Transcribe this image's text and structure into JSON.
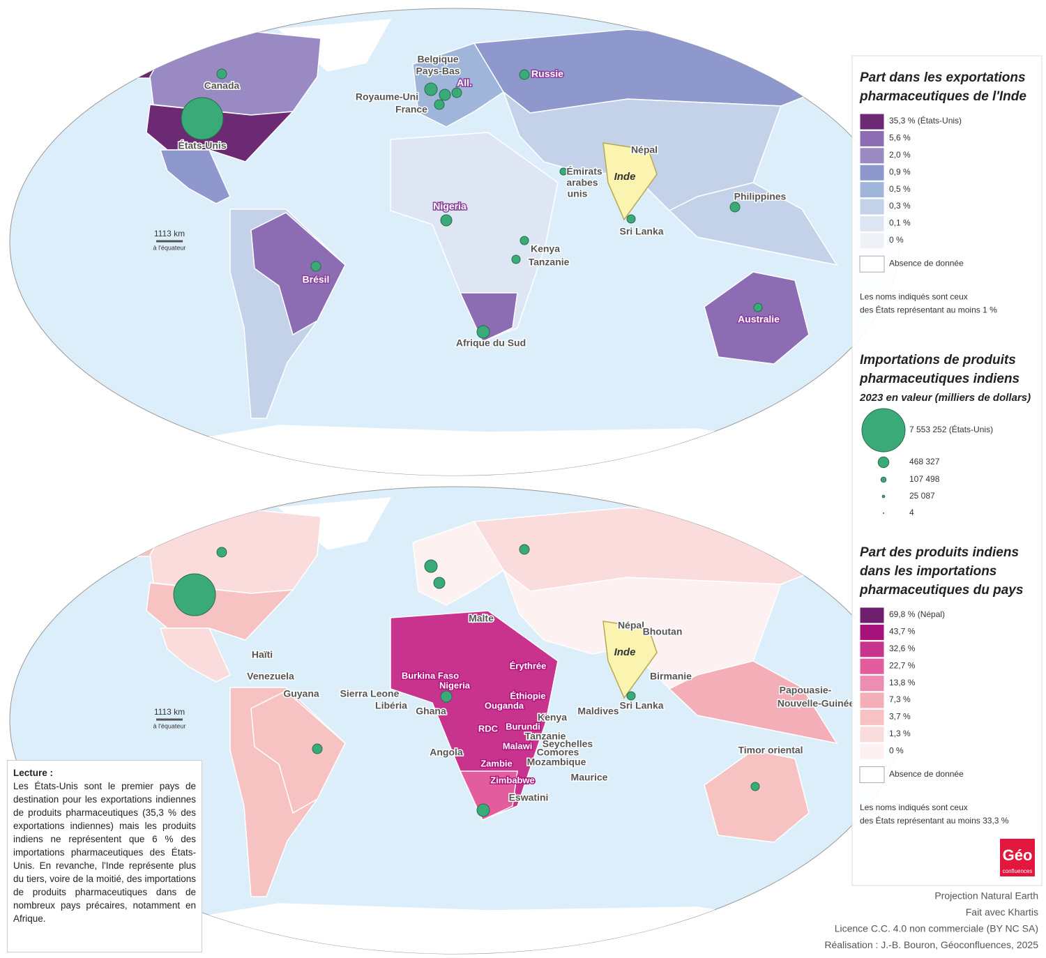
{
  "map_top": {
    "labels": [
      "Canada",
      "États-Unis",
      "Brésil",
      "Belgique",
      "Pays-Bas",
      "Royaume-Uni",
      "France",
      "All.",
      "Russie",
      "Nigeria",
      "Népal",
      "Inde",
      "Émirats",
      "arabes",
      "unis",
      "Sri Lanka",
      "Philippines",
      "Kenya",
      "Tanzanie",
      "Afrique du Sud",
      "Australie"
    ]
  },
  "map_bottom": {
    "labels": [
      "Haïti",
      "Venezuela",
      "Guyana",
      "Burkina Faso",
      "Nigeria",
      "Sierra Leone",
      "Libéria",
      "Ghana",
      "Malte",
      "Érythrée",
      "Éthiopie",
      "Ouganda",
      "Kenya",
      "RDC",
      "Burundi",
      "Tanzanie",
      "Seychelles",
      "Comores",
      "Angola",
      "Malawi",
      "Mozambique",
      "Zambie",
      "Zimbabwe",
      "Eswatini",
      "Maurice",
      "Maldives",
      "Népal",
      "Bhoutan",
      "Inde",
      "Birmanie",
      "Sri Lanka",
      "Papouasie-",
      "Nouvelle-Guinée",
      "Timor oriental"
    ]
  },
  "scale": {
    "distance": "1113 km",
    "note": "à l'équateur"
  },
  "legend_exports": {
    "title": [
      "Part dans les exportations",
      "pharmaceutiques de l'Inde"
    ],
    "classes": [
      "35,3 % (États-Unis)",
      "5,6 %",
      "2,0 %",
      "0,9 %",
      "0,5 %",
      "0,3 %",
      "0,1 %",
      "0 %"
    ],
    "colors": [
      "#6b2a73",
      "#8c6cb3",
      "#9a8ac4",
      "#8f98cc",
      "#9fb5d9",
      "#c3d2e8",
      "#dde6f2",
      "#eef1f6"
    ],
    "no_data": "Absence de donnée",
    "note": [
      "Les noms indiqués sont ceux",
      "des États représentant au moins 1 %"
    ]
  },
  "legend_imports": {
    "title": [
      "Importations de produits",
      "pharmaceutiques indiens"
    ],
    "subtitle": "2023 en valeur (milliers de dollars)",
    "values": [
      7553252,
      468327,
      107498,
      25087,
      4
    ],
    "labels": [
      "7 553 252 (États-Unis)",
      "468 327",
      "107 498",
      "25 087",
      "4"
    ]
  },
  "legend_share": {
    "title": [
      "Part des produits indiens",
      "dans les importations",
      "pharmaceutiques du pays"
    ],
    "classes": [
      "69,8 % (Népal)",
      "43,7 %",
      "32,6 %",
      "22,7 %",
      "13,8 %",
      "7,3 %",
      "3,7 %",
      "1,3 %",
      "0 %"
    ],
    "colors": [
      "#6e1f6e",
      "#a5137a",
      "#c8338e",
      "#e35d9e",
      "#ee8db2",
      "#f3aeb8",
      "#f6c3c2",
      "#fadcdc",
      "#fdf1f1"
    ],
    "no_data": "Absence de donnée",
    "note": [
      "Les noms indiqués sont ceux",
      "des États représentant au moins 33,3 %"
    ]
  },
  "reading": {
    "title": "Lecture :",
    "text": "Les États-Unis sont le premier pays de destination pour les exportations indiennes de produits pharmaceutiques (35,3 % des exportations indiennes) mais les produits indiens ne représentent que 6 % des importations pharmaceutiques des États-Unis. En revanche, l'Inde représente plus du tiers, voire de la moitié, des importations de produits pharmaceutiques dans de nombreux pays précaires, notamment en Afrique."
  },
  "credits": [
    "Projection Natural Earth",
    "Fait avec Khartis",
    "Licence C.C. 4.0 non commerciale (BY NC SA)",
    "Réalisation : J.-B. Bouron, Géoconfluences, 2025"
  ],
  "logo": {
    "main": "Géo",
    "sub": "confluences"
  }
}
